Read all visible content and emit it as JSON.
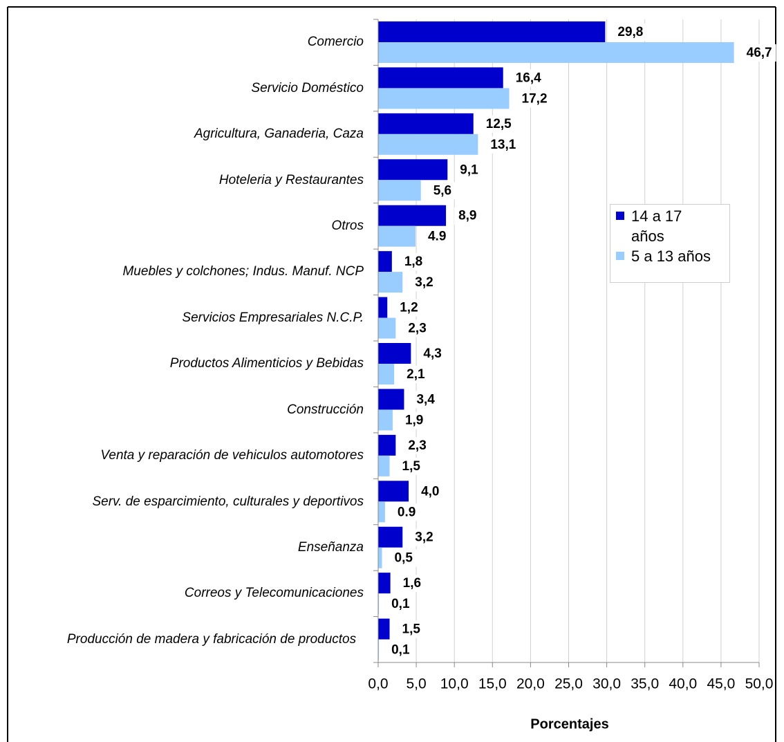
{
  "chart_data": {
    "type": "bar",
    "orientation": "horizontal",
    "categories": [
      "Comercio",
      "Servicio Doméstico",
      "Agricultura, Ganaderia, Caza",
      "Hoteleria y Restaurantes",
      "Otros",
      "Muebles y colchones; Indus. Manuf. NCP",
      "Servicios Empresariales N.C.P.",
      "Productos Alimenticios y Bebidas",
      "Construcción",
      "Venta y reparación de vehiculos automotores",
      "Serv. de esparcimiento, culturales y deportivos",
      "Enseñanza",
      "Correos y Telecomunicaciones",
      "Producción de madera y fabricación de productos"
    ],
    "series": [
      {
        "name": "14 a 17 años",
        "color": "#0000cc",
        "values": [
          29.8,
          16.4,
          12.5,
          9.1,
          8.9,
          1.8,
          1.2,
          4.3,
          3.4,
          2.3,
          4.0,
          3.2,
          1.6,
          1.5
        ],
        "value_labels": [
          "29,8",
          "16,4",
          "12,5",
          "9,1",
          "8,9",
          "1,8",
          "1,2",
          "4,3",
          "3,4",
          "2,3",
          "4,0",
          "3,2",
          "1,6",
          "1,5"
        ]
      },
      {
        "name": "5 a 13 años",
        "color": "#99ccff",
        "values": [
          46.7,
          17.2,
          13.1,
          5.6,
          4.9,
          3.2,
          2.3,
          2.1,
          1.9,
          1.5,
          0.9,
          0.5,
          0.1,
          0.1
        ],
        "value_labels": [
          "46,7",
          "17,2",
          "13,1",
          "5,6",
          "4.9",
          "3,2",
          "2,3",
          "2,1",
          "1,9",
          "1,5",
          "0.9",
          "0,5",
          "0,1",
          "0,1"
        ]
      }
    ],
    "x_label": "Porcentajes",
    "xlim": [
      0,
      50
    ],
    "xticks": [
      {
        "value": 0,
        "label": "0,0"
      },
      {
        "value": 5,
        "label": "5,0"
      },
      {
        "value": 10,
        "label": "10,0"
      },
      {
        "value": 15,
        "label": "15,0"
      },
      {
        "value": 20,
        "label": "20,0"
      },
      {
        "value": 25,
        "label": "25,0"
      },
      {
        "value": 30,
        "label": "30,0"
      },
      {
        "value": 35,
        "label": "35,0"
      },
      {
        "value": 40,
        "label": "40,0"
      },
      {
        "value": 45,
        "label": "45,0"
      },
      {
        "value": 50,
        "label": "50,0"
      }
    ],
    "grid": true,
    "legend": "right"
  }
}
